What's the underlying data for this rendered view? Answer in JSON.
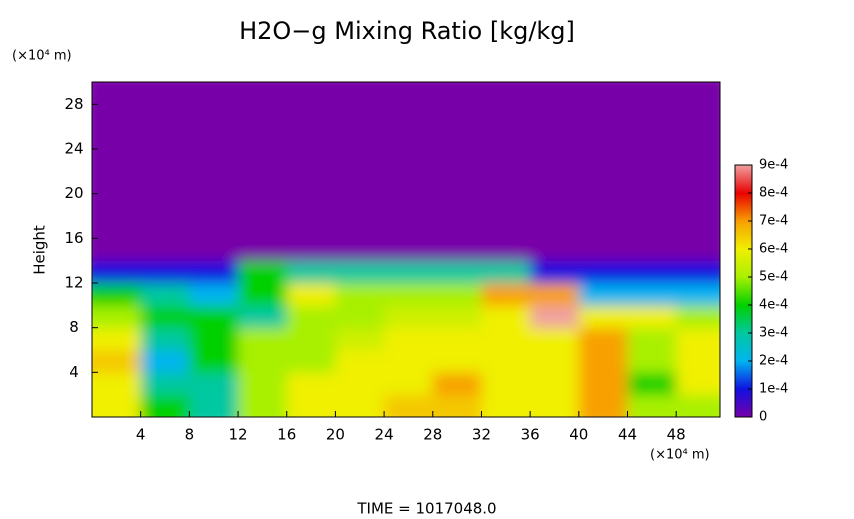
{
  "chart_data": {
    "type": "heatmap",
    "title": "H2O−g Mixing Ratio [kg/kg]",
    "y_label": "Height",
    "y_unit": "(×10⁴ m)",
    "x_unit": "(×10⁴ m)",
    "footer": "TIME  =  1017048.0",
    "xlim": [
      0,
      51.6
    ],
    "ylim": [
      0,
      30
    ],
    "xticks": [
      4,
      8,
      12,
      16,
      20,
      24,
      28,
      32,
      36,
      40,
      44,
      48
    ],
    "yticks": [
      4,
      8,
      12,
      16,
      20,
      24,
      28
    ],
    "x_edges": [
      0,
      4,
      8,
      12,
      16,
      20,
      24,
      28,
      32,
      36,
      40,
      44,
      48,
      51.6
    ],
    "y_edges": [
      0,
      2,
      4,
      6,
      8,
      10,
      12,
      14,
      16,
      18,
      20,
      22,
      24,
      26,
      28,
      30
    ],
    "values": [
      [
        0.0006,
        0.0004,
        0.0003,
        0.0005,
        0.0006,
        0.0006,
        0.00065,
        0.00065,
        0.0006,
        0.0006,
        0.0007,
        0.0005,
        0.0005
      ],
      [
        0.0006,
        0.0003,
        0.0003,
        0.0005,
        0.0006,
        0.0006,
        0.0006,
        0.0007,
        0.0006,
        0.0006,
        0.0007,
        0.0004,
        0.0006
      ],
      [
        0.00065,
        0.0002,
        0.0004,
        0.0005,
        0.0005,
        0.0006,
        0.0006,
        0.0006,
        0.0006,
        0.0006,
        0.0007,
        0.0005,
        0.0006
      ],
      [
        0.0006,
        0.0003,
        0.0004,
        0.0005,
        0.0005,
        0.00055,
        0.0006,
        0.0006,
        0.0006,
        0.0006,
        0.0007,
        0.0005,
        0.0006
      ],
      [
        0.0005,
        0.0004,
        0.0004,
        0.0003,
        0.0005,
        0.0005,
        0.00055,
        0.00055,
        0.0006,
        0.0009,
        0.0006,
        0.0006,
        0.0005
      ],
      [
        0.0004,
        0.0003,
        0.0002,
        0.0004,
        0.0006,
        0.0005,
        0.0005,
        0.0005,
        0.0007,
        0.0007,
        0.0002,
        0.0002,
        0.0002
      ],
      [
        0.0001,
        0.0001,
        0.0001,
        0.0004,
        0.0003,
        0.0003,
        0.0003,
        0.0003,
        0.0003,
        0.0001,
        0.0001,
        0.0001,
        0.0001
      ],
      [
        0,
        0,
        0,
        0,
        0,
        0,
        0,
        0,
        0,
        0,
        0,
        0,
        0
      ],
      [
        0,
        0,
        0,
        0,
        0,
        0,
        0,
        0,
        0,
        0,
        0,
        0,
        0
      ],
      [
        0,
        0,
        0,
        0,
        0,
        0,
        0,
        0,
        0,
        0,
        0,
        0,
        0
      ],
      [
        0,
        0,
        0,
        0,
        0,
        0,
        0,
        0,
        0,
        0,
        0,
        0,
        0
      ],
      [
        0,
        0,
        0,
        0,
        0,
        0,
        0,
        0,
        0,
        0,
        0,
        0,
        0
      ],
      [
        0,
        0,
        0,
        0,
        0,
        0,
        0,
        0,
        0,
        0,
        0,
        0,
        0
      ],
      [
        0,
        0,
        0,
        0,
        0,
        0,
        0,
        0,
        0,
        0,
        0,
        0,
        0
      ],
      [
        0,
        0,
        0,
        0,
        0,
        0,
        0,
        0,
        0,
        0,
        0,
        0,
        0
      ]
    ],
    "colorbar_ticks": [
      0,
      {
        "value": 0.0001,
        "label": "1e-4"
      },
      {
        "value": 0.0002,
        "label": "2e-4"
      },
      {
        "value": 0.0003,
        "label": "3e-4"
      },
      {
        "value": 0.0004,
        "label": "4e-4"
      },
      {
        "value": 0.0005,
        "label": "5e-4"
      },
      {
        "value": 0.0006,
        "label": "6e-4"
      },
      {
        "value": 0.0007,
        "label": "7e-4"
      },
      {
        "value": 0.0008,
        "label": "8e-4"
      },
      {
        "value": 0.0009,
        "label": "9e-4"
      }
    ],
    "colors": [
      "#7800a8",
      "#1010e0",
      "#00b4f0",
      "#00c8a0",
      "#00d000",
      "#a8f000",
      "#f0f000",
      "#f8a000",
      "#e80000",
      "#f0a0a0"
    ]
  }
}
